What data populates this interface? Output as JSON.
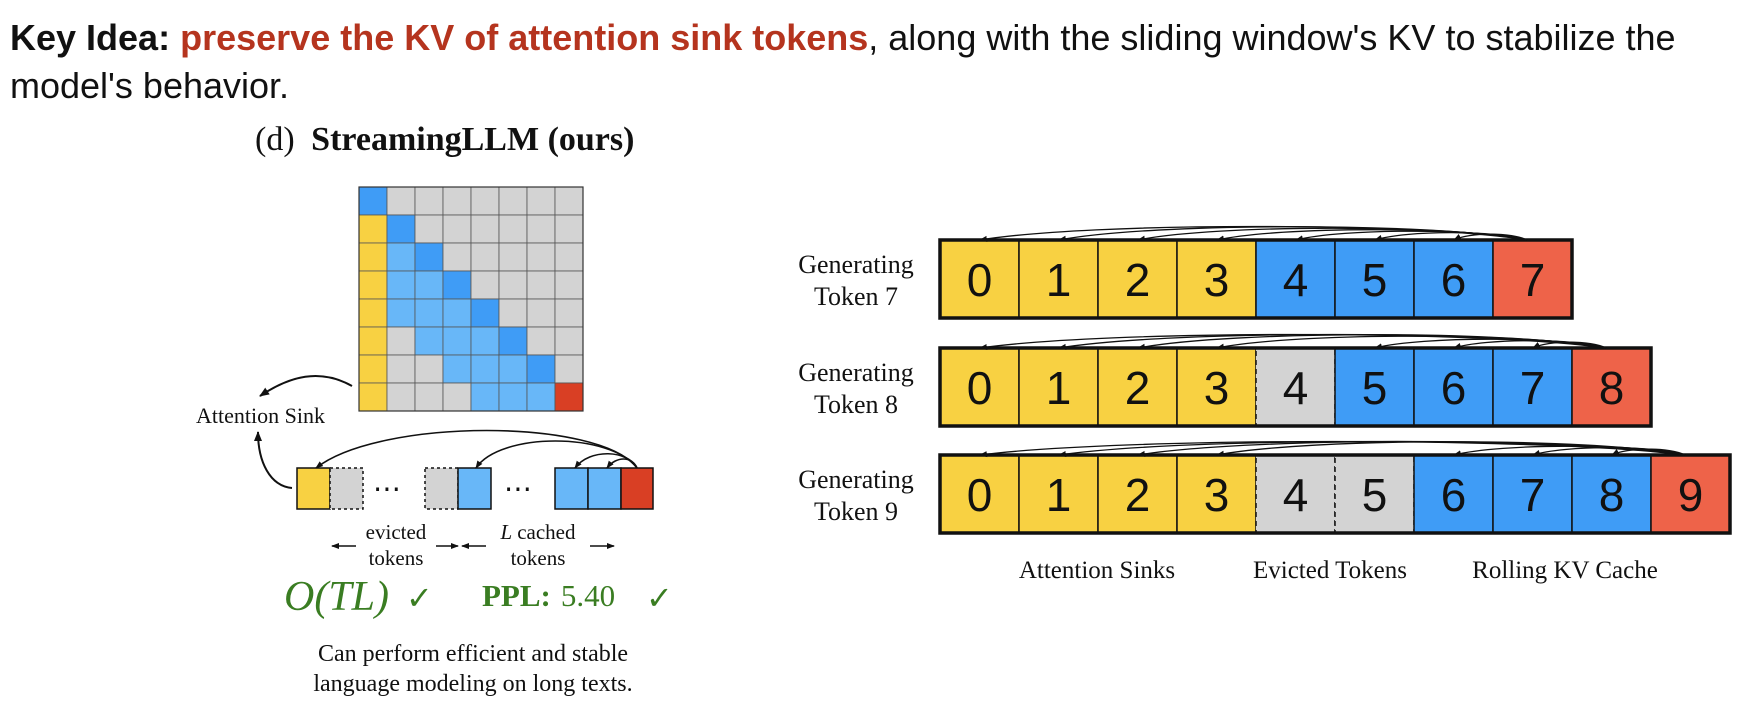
{
  "header": {
    "key_label": "Key Idea:",
    "highlight": "preserve the KV of attention sink tokens",
    "rest": ", along with the sliding window's KV to stabilize the model's behavior.",
    "highlight_color": "#B5341E"
  },
  "panel_title": {
    "prefix": "(d)",
    "name": "StreamingLLM (ours)"
  },
  "colors": {
    "sink": "#F8D142",
    "window": "#3F9CF6",
    "window_light": "#68B7F8",
    "evicted": "#D3D3D3",
    "current": "#D93F24",
    "current_right": "#EE6349",
    "accent_green": "#3A7D22"
  },
  "matrix": {
    "size": 8,
    "rows": [
      [
        "window",
        "evicted",
        "evicted",
        "evicted",
        "evicted",
        "evicted",
        "evicted",
        "evicted"
      ],
      [
        "sink",
        "window",
        "evicted",
        "evicted",
        "evicted",
        "evicted",
        "evicted",
        "evicted"
      ],
      [
        "sink",
        "window_light",
        "window",
        "evicted",
        "evicted",
        "evicted",
        "evicted",
        "evicted"
      ],
      [
        "sink",
        "window_light",
        "window_light",
        "window",
        "evicted",
        "evicted",
        "evicted",
        "evicted"
      ],
      [
        "sink",
        "window_light",
        "window_light",
        "window_light",
        "window",
        "evicted",
        "evicted",
        "evicted"
      ],
      [
        "sink",
        "evicted",
        "window_light",
        "window_light",
        "window_light",
        "window",
        "evicted",
        "evicted"
      ],
      [
        "sink",
        "evicted",
        "evicted",
        "window_light",
        "window_light",
        "window_light",
        "window",
        "evicted"
      ],
      [
        "sink",
        "evicted",
        "evicted",
        "evicted",
        "window_light",
        "window_light",
        "window_light",
        "current"
      ]
    ]
  },
  "left_labels": {
    "attention_sink": "Attention Sink",
    "dots": "⋯",
    "evicted_line1": "evicted",
    "evicted_line2": "tokens",
    "cached_italic": "L",
    "cached_line1": "cached",
    "cached_line2": "tokens",
    "complexity": "O(TL)",
    "ppl_label": "PPL:",
    "ppl_value": "5.40",
    "check": "✓",
    "caption_line1": "Can perform efficient and stable",
    "caption_line2": "language modeling on long texts."
  },
  "rows": [
    {
      "label1": "Generating",
      "label2": "Token 7",
      "cells": [
        {
          "t": "0",
          "c": "sink"
        },
        {
          "t": "1",
          "c": "sink"
        },
        {
          "t": "2",
          "c": "sink"
        },
        {
          "t": "3",
          "c": "sink"
        },
        {
          "t": "4",
          "c": "window"
        },
        {
          "t": "5",
          "c": "window"
        },
        {
          "t": "6",
          "c": "window"
        },
        {
          "t": "7",
          "c": "current_right"
        }
      ]
    },
    {
      "label1": "Generating",
      "label2": "Token 8",
      "cells": [
        {
          "t": "0",
          "c": "sink"
        },
        {
          "t": "1",
          "c": "sink"
        },
        {
          "t": "2",
          "c": "sink"
        },
        {
          "t": "3",
          "c": "sink"
        },
        {
          "t": "4",
          "c": "evicted"
        },
        {
          "t": "5",
          "c": "window"
        },
        {
          "t": "6",
          "c": "window"
        },
        {
          "t": "7",
          "c": "window"
        },
        {
          "t": "8",
          "c": "current_right"
        }
      ]
    },
    {
      "label1": "Generating",
      "label2": "Token 9",
      "cells": [
        {
          "t": "0",
          "c": "sink"
        },
        {
          "t": "1",
          "c": "sink"
        },
        {
          "t": "2",
          "c": "sink"
        },
        {
          "t": "3",
          "c": "sink"
        },
        {
          "t": "4",
          "c": "evicted"
        },
        {
          "t": "5",
          "c": "evicted"
        },
        {
          "t": "6",
          "c": "window"
        },
        {
          "t": "7",
          "c": "window"
        },
        {
          "t": "8",
          "c": "window"
        },
        {
          "t": "9",
          "c": "current_right"
        }
      ]
    }
  ],
  "bottom_labels": {
    "attention_sinks": "Attention Sinks",
    "evicted_tokens": "Evicted Tokens",
    "rolling_kv": "Rolling KV Cache"
  }
}
